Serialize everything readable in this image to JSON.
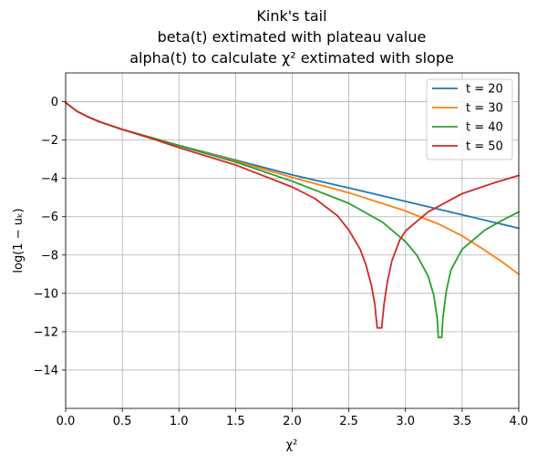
{
  "chart_data": {
    "type": "line",
    "title_lines": [
      "Kink's tail",
      "beta(t) extimated with plateau value",
      "alpha(t) to calculate χ² extimated with slope"
    ],
    "xlabel": "χ²",
    "ylabel": "log(1 − uₖ)",
    "xlim": [
      0.0,
      4.0
    ],
    "ylim": [
      -16.0,
      1.5
    ],
    "xticks": [
      0.0,
      0.5,
      1.0,
      1.5,
      2.0,
      2.5,
      3.0,
      3.5,
      4.0
    ],
    "xtick_labels": [
      "0.0",
      "0.5",
      "1.0",
      "1.5",
      "2.0",
      "2.5",
      "3.0",
      "3.5",
      "4.0"
    ],
    "yticks": [
      0,
      -2,
      -4,
      -6,
      -8,
      -10,
      -12,
      -14
    ],
    "ytick_labels": [
      "0",
      "−2",
      "−4",
      "−6",
      "−8",
      "−10",
      "−12",
      "−14"
    ],
    "grid": true,
    "legend_position": "top-right",
    "series": [
      {
        "name": "t = 20",
        "color": "#1f77b4",
        "x": [
          0.0,
          0.1,
          0.2,
          0.3,
          0.5,
          0.8,
          1.0,
          1.5,
          2.0,
          2.5,
          3.0,
          3.5,
          4.0
        ],
        "y": [
          -0.05,
          -0.5,
          -0.8,
          -1.05,
          -1.45,
          -1.95,
          -2.28,
          -3.05,
          -3.82,
          -4.5,
          -5.2,
          -5.9,
          -6.6
        ]
      },
      {
        "name": "t = 30",
        "color": "#ff7f0e",
        "x": [
          0.0,
          0.1,
          0.2,
          0.3,
          0.5,
          0.8,
          1.0,
          1.5,
          2.0,
          2.5,
          3.0,
          3.3,
          3.5,
          3.7,
          3.85,
          4.0
        ],
        "y": [
          -0.05,
          -0.5,
          -0.8,
          -1.05,
          -1.45,
          -1.95,
          -2.3,
          -3.1,
          -3.95,
          -4.75,
          -5.7,
          -6.4,
          -7.0,
          -7.75,
          -8.35,
          -9.0
        ]
      },
      {
        "name": "t = 40",
        "color": "#2ca02c",
        "x": [
          0.0,
          0.1,
          0.2,
          0.3,
          0.5,
          0.8,
          1.0,
          1.5,
          2.0,
          2.5,
          2.8,
          3.0,
          3.1,
          3.2,
          3.25,
          3.28,
          3.29,
          3.32,
          3.33,
          3.36,
          3.4,
          3.5,
          3.7,
          3.85,
          4.0
        ],
        "y": [
          -0.05,
          -0.5,
          -0.8,
          -1.05,
          -1.45,
          -1.95,
          -2.3,
          -3.15,
          -4.15,
          -5.3,
          -6.3,
          -7.3,
          -8.0,
          -9.1,
          -10.1,
          -11.3,
          -12.3,
          -12.3,
          -11.3,
          -9.9,
          -8.8,
          -7.7,
          -6.7,
          -6.2,
          -5.75
        ]
      },
      {
        "name": "t = 50",
        "color": "#d62728",
        "x": [
          0.0,
          0.1,
          0.2,
          0.3,
          0.5,
          0.8,
          1.0,
          1.5,
          2.0,
          2.2,
          2.4,
          2.5,
          2.6,
          2.65,
          2.7,
          2.73,
          2.75,
          2.79,
          2.81,
          2.84,
          2.88,
          2.95,
          3.0,
          3.2,
          3.5,
          3.8,
          4.0
        ],
        "y": [
          -0.05,
          -0.5,
          -0.8,
          -1.05,
          -1.45,
          -2.0,
          -2.4,
          -3.3,
          -4.45,
          -5.05,
          -5.95,
          -6.7,
          -7.7,
          -8.5,
          -9.6,
          -10.6,
          -11.8,
          -11.8,
          -10.6,
          -9.4,
          -8.3,
          -7.2,
          -6.75,
          -5.75,
          -4.8,
          -4.2,
          -3.85
        ]
      }
    ]
  }
}
